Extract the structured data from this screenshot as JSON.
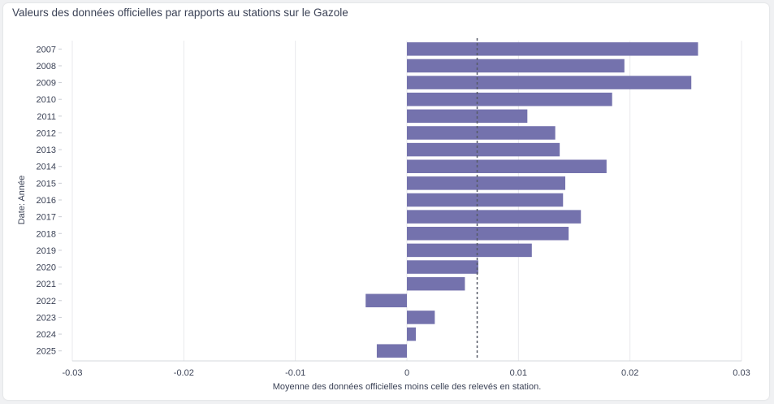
{
  "title": "Valeurs des données officielles par rapports au stations sur le Gazole",
  "chart_data": {
    "type": "bar",
    "orientation": "horizontal",
    "title": "Valeurs des données officielles par rapports au stations sur le Gazole",
    "xlabel": "Moyenne des données officielles moins celle des relevés en station.",
    "ylabel": "Date: Année",
    "xlim": [
      -0.03,
      0.03
    ],
    "xticks": [
      -0.03,
      -0.02,
      -0.01,
      0,
      0.01,
      0.02,
      0.03
    ],
    "xtick_labels": [
      "-0.03",
      "-0.02",
      "-0.01",
      "0",
      "0.01",
      "0.02",
      "0.03"
    ],
    "reference_line": 0.0063,
    "grid": "vertical",
    "bar_color": "#7472ad",
    "categories": [
      "2007",
      "2008",
      "2009",
      "2010",
      "2011",
      "2012",
      "2013",
      "2014",
      "2015",
      "2016",
      "2017",
      "2018",
      "2019",
      "2020",
      "2021",
      "2022",
      "2023",
      "2024",
      "2025"
    ],
    "values": [
      0.0261,
      0.0195,
      0.0255,
      0.0184,
      0.0108,
      0.0133,
      0.0137,
      0.0179,
      0.0142,
      0.014,
      0.0156,
      0.0145,
      0.0112,
      0.0064,
      0.0052,
      -0.0037,
      0.0025,
      0.0008,
      -0.0027
    ]
  }
}
